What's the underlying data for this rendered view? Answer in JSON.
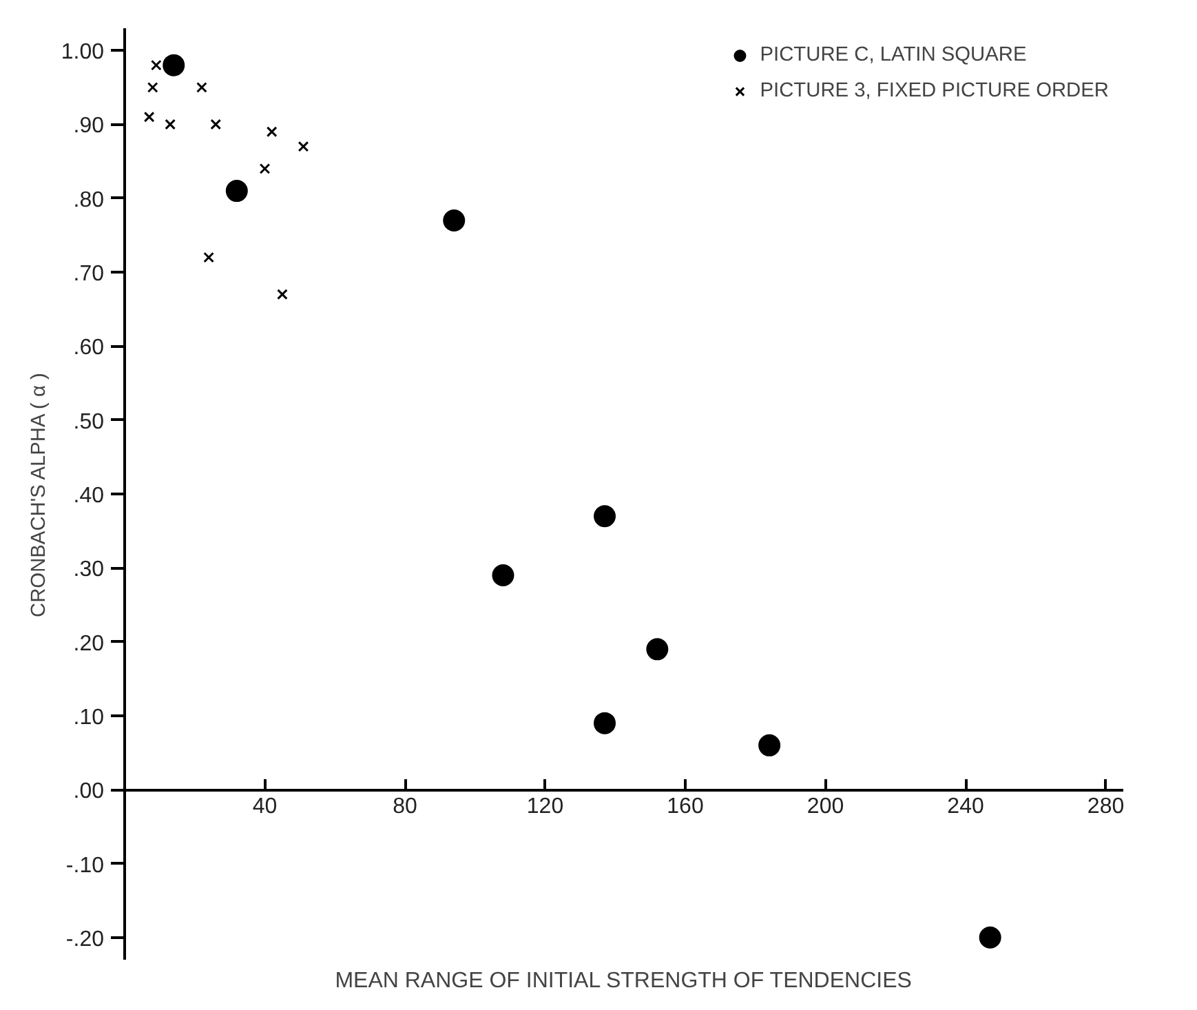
{
  "chart_data": {
    "type": "scatter",
    "xlabel": "MEAN RANGE OF INITIAL STRENGTH OF TENDENCIES",
    "ylabel": "CRONBACH'S ALPHA ( α )",
    "xlim": [
      0,
      285
    ],
    "ylim": [
      -0.23,
      1.03
    ],
    "xticks": [
      40,
      80,
      120,
      160,
      200,
      240,
      280
    ],
    "yticks": [
      {
        "value": 1.0,
        "label": "1.00"
      },
      {
        "value": 0.9,
        "label": ".90"
      },
      {
        "value": 0.8,
        "label": ".80"
      },
      {
        "value": 0.7,
        "label": ".70"
      },
      {
        "value": 0.6,
        "label": ".60"
      },
      {
        "value": 0.5,
        "label": ".50"
      },
      {
        "value": 0.4,
        "label": ".40"
      },
      {
        "value": 0.3,
        "label": ".30"
      },
      {
        "value": 0.2,
        "label": ".20"
      },
      {
        "value": 0.1,
        "label": ".10"
      },
      {
        "value": 0.0,
        "label": ".00"
      },
      {
        "value": -0.1,
        "label": "-.10"
      },
      {
        "value": -0.2,
        "label": "-.20"
      }
    ],
    "grid": false,
    "legend": "top right",
    "series": [
      {
        "name": "PICTURE C, LATIN SQUARE",
        "color": "#000000",
        "marker": "circle",
        "x": [
          14,
          32,
          94,
          137,
          108,
          152,
          137,
          184,
          247
        ],
        "values": [
          0.98,
          0.81,
          0.77,
          0.37,
          0.29,
          0.19,
          0.09,
          0.06,
          -0.2
        ]
      },
      {
        "name": "PICTURE 3, FIXED PICTURE ORDER",
        "color": "#000000",
        "marker": "cross",
        "x": [
          9,
          8,
          7,
          13,
          22,
          26,
          42,
          51,
          40,
          24,
          45
        ],
        "values": [
          0.98,
          0.95,
          0.91,
          0.9,
          0.95,
          0.9,
          0.89,
          0.87,
          0.84,
          0.72,
          0.67
        ]
      }
    ]
  }
}
